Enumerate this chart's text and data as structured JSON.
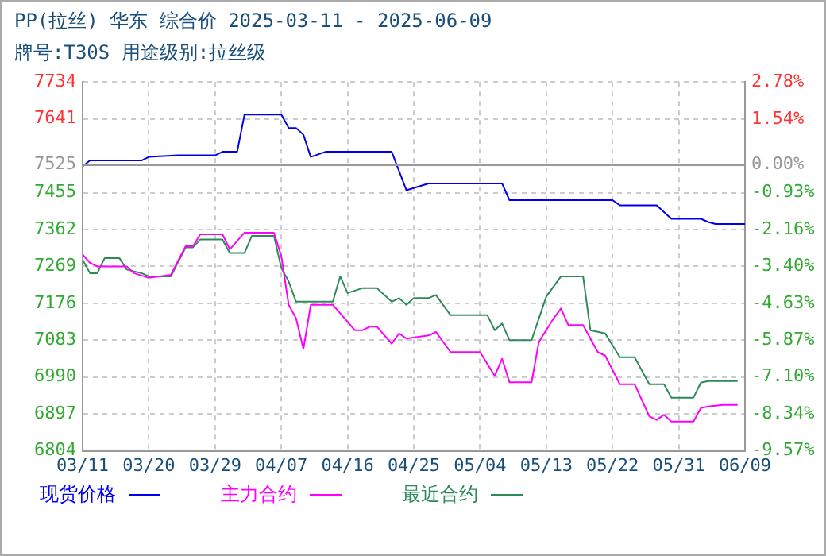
{
  "chart_data": {
    "type": "line",
    "title": "PP(拉丝) 华东 综合价 2025-03-11 - 2025-06-09",
    "subtitle": "牌号:T30S 用途级别:拉丝级",
    "xlim": [
      "2025-03-11",
      "2025-06-09"
    ],
    "xticks": [
      {
        "value": "2025-03-11",
        "label": "03/11"
      },
      {
        "value": "2025-03-20",
        "label": "03/20"
      },
      {
        "value": "2025-03-29",
        "label": "03/29"
      },
      {
        "value": "2025-04-07",
        "label": "04/07"
      },
      {
        "value": "2025-04-16",
        "label": "04/16"
      },
      {
        "value": "2025-04-25",
        "label": "04/25"
      },
      {
        "value": "2025-05-04",
        "label": "05/04"
      },
      {
        "value": "2025-05-13",
        "label": "05/13"
      },
      {
        "value": "2025-05-22",
        "label": "05/22"
      },
      {
        "value": "2025-05-31",
        "label": "05/31"
      },
      {
        "value": "2025-06-09",
        "label": "06/09"
      }
    ],
    "ylim": [
      6804,
      7734
    ],
    "yticks": [
      6804,
      6897,
      6990,
      7083,
      7176,
      7269,
      7362,
      7455,
      7525,
      7641,
      7734
    ],
    "y2lim": [
      -9.57,
      2.78
    ],
    "y2ticks": [
      {
        "value": -9.57,
        "label": "-9.57%"
      },
      {
        "value": -8.34,
        "label": "-8.34%"
      },
      {
        "value": -7.1,
        "label": "-7.10%"
      },
      {
        "value": -5.87,
        "label": "-5.87%"
      },
      {
        "value": -4.63,
        "label": "-4.63%"
      },
      {
        "value": -3.4,
        "label": "-3.40%"
      },
      {
        "value": -2.16,
        "label": "-2.16%"
      },
      {
        "value": -0.93,
        "label": "-0.93%"
      },
      {
        "value": 0,
        "label": "0.00%"
      },
      {
        "value": 1.54,
        "label": "1.54%"
      },
      {
        "value": 2.78,
        "label": "2.78%"
      }
    ],
    "ref_lines": [
      {
        "axis": "y",
        "value": 7525,
        "color": "#999999"
      }
    ],
    "grid": true,
    "legend": "bottom",
    "marker": "none",
    "line_style": "solid",
    "series": [
      {
        "name": "现货价格",
        "color": "#0000ee",
        "x": [
          "2025-03-11",
          "2025-03-12",
          "2025-03-19",
          "2025-03-20",
          "2025-03-24",
          "2025-03-29",
          "2025-03-30",
          "2025-04-01",
          "2025-04-02",
          "2025-04-07",
          "2025-04-08",
          "2025-04-09",
          "2025-04-10",
          "2025-04-11",
          "2025-04-13",
          "2025-04-22",
          "2025-04-24",
          "2025-04-27",
          "2025-05-07",
          "2025-05-08",
          "2025-05-22",
          "2025-05-23",
          "2025-05-28",
          "2025-05-30",
          "2025-06-03",
          "2025-06-04",
          "2025-06-05",
          "2025-06-09"
        ],
        "values": [
          7521,
          7536,
          7536,
          7545,
          7549,
          7549,
          7558,
          7558,
          7652,
          7652,
          7618,
          7618,
          7601,
          7545,
          7558,
          7558,
          7461,
          7478,
          7478,
          7436,
          7436,
          7423,
          7423,
          7389,
          7389,
          7381,
          7376,
          7376
        ]
      },
      {
        "name": "主力合约",
        "color": "#ff00ff",
        "x": [
          "2025-03-11",
          "2025-03-12",
          "2025-03-13",
          "2025-03-17",
          "2025-03-18",
          "2025-03-20",
          "2025-03-23",
          "2025-03-25",
          "2025-03-26",
          "2025-03-27",
          "2025-03-30",
          "2025-03-31",
          "2025-04-02",
          "2025-04-06",
          "2025-04-07",
          "2025-04-08",
          "2025-04-09",
          "2025-04-10",
          "2025-04-11",
          "2025-04-14",
          "2025-04-15",
          "2025-04-17",
          "2025-04-18",
          "2025-04-19",
          "2025-04-20",
          "2025-04-22",
          "2025-04-23",
          "2025-04-24",
          "2025-04-27",
          "2025-04-28",
          "2025-04-30",
          "2025-05-04",
          "2025-05-06",
          "2025-05-07",
          "2025-05-08",
          "2025-05-11",
          "2025-05-12",
          "2025-05-14",
          "2025-05-15",
          "2025-05-16",
          "2025-05-18",
          "2025-05-20",
          "2025-05-21",
          "2025-05-23",
          "2025-05-25",
          "2025-05-27",
          "2025-05-28",
          "2025-05-29",
          "2025-05-30",
          "2025-06-02",
          "2025-06-03",
          "2025-06-04",
          "2025-06-06",
          "2025-06-08"
        ],
        "values": [
          7299,
          7278,
          7269,
          7269,
          7252,
          7240,
          7248,
          7320,
          7320,
          7350,
          7350,
          7312,
          7354,
          7354,
          7295,
          7172,
          7138,
          7061,
          7172,
          7172,
          7151,
          7108,
          7108,
          7117,
          7117,
          7074,
          7100,
          7087,
          7095,
          7104,
          7053,
          7053,
          6993,
          7036,
          6977,
          6977,
          7079,
          7138,
          7163,
          7121,
          7121,
          7053,
          7044,
          6972,
          6972,
          6891,
          6882,
          6895,
          6878,
          6878,
          6912,
          6916,
          6920,
          6920
        ]
      },
      {
        "name": "最近合约",
        "color": "#2e8b57",
        "x": [
          "2025-03-11",
          "2025-03-12",
          "2025-03-13",
          "2025-03-14",
          "2025-03-16",
          "2025-03-17",
          "2025-03-19",
          "2025-03-20",
          "2025-03-23",
          "2025-03-25",
          "2025-03-26",
          "2025-03-27",
          "2025-03-30",
          "2025-03-31",
          "2025-04-02",
          "2025-04-03",
          "2025-04-06",
          "2025-04-07",
          "2025-04-08",
          "2025-04-09",
          "2025-04-14",
          "2025-04-15",
          "2025-04-16",
          "2025-04-18",
          "2025-04-20",
          "2025-04-22",
          "2025-04-23",
          "2025-04-24",
          "2025-04-25",
          "2025-04-27",
          "2025-04-28",
          "2025-04-30",
          "2025-05-05",
          "2025-05-06",
          "2025-05-07",
          "2025-05-08",
          "2025-05-11",
          "2025-05-13",
          "2025-05-15",
          "2025-05-18",
          "2025-05-19",
          "2025-05-21",
          "2025-05-23",
          "2025-05-25",
          "2025-05-27",
          "2025-05-29",
          "2025-05-30",
          "2025-06-02",
          "2025-06-03",
          "2025-06-04",
          "2025-06-08"
        ],
        "values": [
          7286,
          7252,
          7252,
          7290,
          7290,
          7261,
          7252,
          7244,
          7244,
          7317,
          7317,
          7337,
          7337,
          7303,
          7303,
          7346,
          7346,
          7265,
          7231,
          7180,
          7180,
          7244,
          7202,
          7214,
          7214,
          7180,
          7189,
          7172,
          7189,
          7189,
          7197,
          7146,
          7146,
          7108,
          7125,
          7083,
          7083,
          7193,
          7244,
          7244,
          7108,
          7100,
          7040,
          7040,
          6972,
          6972,
          6938,
          6938,
          6976,
          6980,
          6980
        ]
      }
    ]
  }
}
